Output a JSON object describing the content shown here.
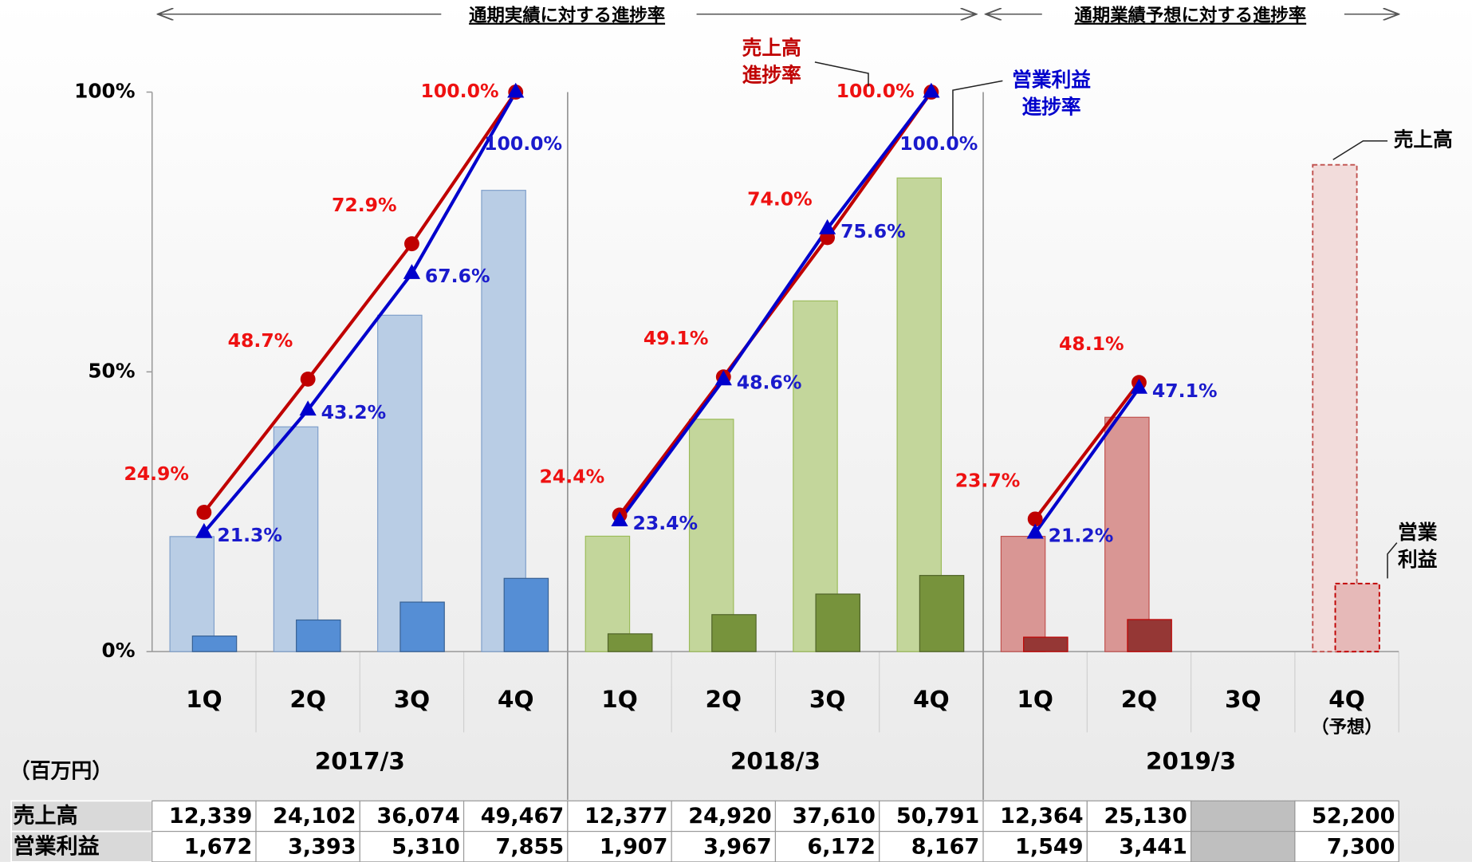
{
  "chart_data": {
    "type": "bar_line",
    "header": [
      "通期実績に対する進捗率",
      "通期業績予想に対する進捗率"
    ],
    "unit": "（百万円）",
    "groups": [
      "2017/3",
      "2018/3",
      "2019/3"
    ],
    "categories": [
      "1Q",
      "2Q",
      "3Q",
      "4Q",
      "1Q",
      "2Q",
      "3Q",
      "4Q",
      "1Q",
      "2Q",
      "3Q",
      "4Q"
    ],
    "forecast": [
      false,
      false,
      false,
      false,
      false,
      false,
      false,
      false,
      false,
      false,
      false,
      true
    ],
    "forecast_note": "（予想）",
    "ylim": [
      0,
      100
    ],
    "yticks": [
      {
        "value": 0,
        "label": "0%"
      },
      {
        "value": 50,
        "label": "50%"
      },
      {
        "value": 100,
        "label": "100%"
      }
    ],
    "y2lim": [
      0,
      60000
    ],
    "bars": [
      {
        "name": "売上高",
        "colors": [
          "#b9cde5",
          "#c3d69b",
          "#d99694"
        ],
        "stroke": [
          "#7f9fca",
          "#9bbb59",
          "#c0504d"
        ],
        "forecast_color": "#f2dcdb",
        "values": [
          12339,
          24102,
          36074,
          49467,
          12377,
          24920,
          37610,
          50791,
          12364,
          25130,
          null,
          52200
        ],
        "value_labels": [
          "12,339",
          "24,102",
          "36,074",
          "49,467",
          "12,377",
          "24,920",
          "37,610",
          "50,791",
          "12,364",
          "25,130",
          null,
          "52,200"
        ]
      },
      {
        "name": "営業利益",
        "colors": [
          "#558ed5",
          "#77933c",
          "#953735"
        ],
        "stroke": [
          "#376092",
          "#4f6228",
          "#c00000"
        ],
        "forecast_color": "#e6b9b8",
        "values": [
          1672,
          3393,
          5310,
          7855,
          1907,
          3967,
          6172,
          8167,
          1549,
          3441,
          null,
          7300
        ],
        "value_labels": [
          "1,672",
          "3,393",
          "5,310",
          "7,855",
          "1,907",
          "3,967",
          "6,172",
          "8,167",
          "1,549",
          "3,441",
          null,
          "7,300"
        ]
      }
    ],
    "series": [
      {
        "name": [
          "売上高",
          "進捗率"
        ],
        "color": "#c00000",
        "label_color": "#ee1111",
        "marker": "circle",
        "values": [
          24.9,
          48.7,
          72.9,
          100.0,
          24.4,
          49.1,
          74.0,
          100.0,
          23.7,
          48.1,
          null,
          null
        ],
        "value_labels": [
          "24.9%",
          "48.7%",
          "72.9%",
          "100.0%",
          "24.4%",
          "49.1%",
          "74.0%",
          "100.0%",
          "23.7%",
          "48.1%",
          null,
          null
        ]
      },
      {
        "name": [
          "営業利益",
          "進捗率"
        ],
        "color": "#0000cc",
        "label_color": "#1a1acc",
        "marker": "triangle",
        "values": [
          21.3,
          43.2,
          67.6,
          100.0,
          23.4,
          48.6,
          75.6,
          100.0,
          21.2,
          47.1,
          null,
          null
        ],
        "value_labels": [
          "21.3%",
          "43.2%",
          "67.6%",
          "100.0%",
          "23.4%",
          "48.6%",
          "75.6%",
          "100.0%",
          "21.2%",
          "47.1%",
          null,
          null
        ]
      }
    ],
    "annotations": [
      [
        "売上高"
      ],
      [
        "営業",
        "利益"
      ]
    ]
  }
}
